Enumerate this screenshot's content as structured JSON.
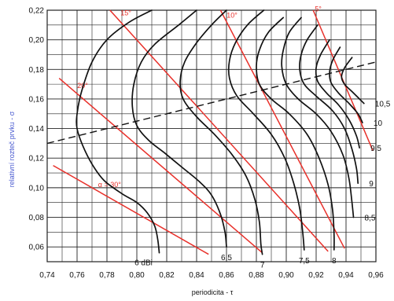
{
  "chart_data": {
    "type": "line",
    "xlabel": "periodicita - τ",
    "ylabel": "relativní rozteč prvku - σ",
    "xlim": [
      0.74,
      0.96
    ],
    "ylim": [
      0.05,
      0.22
    ],
    "x_ticks": [
      "0,74",
      "0,76",
      "0,78",
      "0,80",
      "0,82",
      "0,84",
      "0,86",
      "0,88",
      "0,90",
      "0,92",
      "0,94",
      "0,96"
    ],
    "y_ticks": [
      "0,06",
      "0,08",
      "0,10",
      "0,12",
      "0,14",
      "0,16",
      "0,18",
      "0,20",
      "0,22"
    ],
    "grid": true,
    "gain_contours": [
      {
        "label": "6 dBi",
        "points": [
          [
            0.81,
            0.22
          ],
          [
            0.795,
            0.212
          ],
          [
            0.78,
            0.2
          ],
          [
            0.77,
            0.185
          ],
          [
            0.763,
            0.165
          ],
          [
            0.76,
            0.15
          ],
          [
            0.76,
            0.14
          ],
          [
            0.764,
            0.128
          ],
          [
            0.77,
            0.116
          ],
          [
            0.778,
            0.105
          ],
          [
            0.79,
            0.096
          ],
          [
            0.8,
            0.09
          ],
          [
            0.807,
            0.083
          ],
          [
            0.812,
            0.074
          ],
          [
            0.814,
            0.065
          ],
          [
            0.815,
            0.056
          ]
        ]
      },
      {
        "label": "6,5",
        "points": [
          [
            0.84,
            0.22
          ],
          [
            0.828,
            0.21
          ],
          [
            0.812,
            0.197
          ],
          [
            0.803,
            0.185
          ],
          [
            0.798,
            0.17
          ],
          [
            0.797,
            0.155
          ],
          [
            0.8,
            0.142
          ],
          [
            0.808,
            0.132
          ],
          [
            0.818,
            0.124
          ],
          [
            0.83,
            0.114
          ],
          [
            0.842,
            0.104
          ],
          [
            0.85,
            0.095
          ],
          [
            0.856,
            0.082
          ],
          [
            0.859,
            0.07
          ],
          [
            0.86,
            0.06
          ]
        ]
      },
      {
        "label": "7",
        "points": [
          [
            0.86,
            0.22
          ],
          [
            0.85,
            0.21
          ],
          [
            0.84,
            0.198
          ],
          [
            0.832,
            0.185
          ],
          [
            0.829,
            0.172
          ],
          [
            0.831,
            0.16
          ],
          [
            0.84,
            0.148
          ],
          [
            0.852,
            0.136
          ],
          [
            0.864,
            0.122
          ],
          [
            0.873,
            0.108
          ],
          [
            0.879,
            0.092
          ],
          [
            0.882,
            0.077
          ],
          [
            0.883,
            0.062
          ],
          [
            0.884,
            0.055
          ]
        ]
      },
      {
        "label": "7,5",
        "points": [
          [
            0.885,
            0.22
          ],
          [
            0.874,
            0.21
          ],
          [
            0.866,
            0.198
          ],
          [
            0.862,
            0.186
          ],
          [
            0.862,
            0.174
          ],
          [
            0.867,
            0.162
          ],
          [
            0.878,
            0.15
          ],
          [
            0.89,
            0.136
          ],
          [
            0.899,
            0.12
          ],
          [
            0.905,
            0.103
          ],
          [
            0.909,
            0.086
          ],
          [
            0.911,
            0.07
          ],
          [
            0.912,
            0.058
          ]
        ]
      },
      {
        "label": "8",
        "points": [
          [
            0.898,
            0.215
          ],
          [
            0.888,
            0.205
          ],
          [
            0.882,
            0.193
          ],
          [
            0.88,
            0.182
          ],
          [
            0.882,
            0.17
          ],
          [
            0.89,
            0.16
          ],
          [
            0.902,
            0.15
          ],
          [
            0.914,
            0.136
          ],
          [
            0.922,
            0.12
          ],
          [
            0.928,
            0.102
          ],
          [
            0.931,
            0.085
          ],
          [
            0.932,
            0.068
          ],
          [
            0.932,
            0.058
          ]
        ]
      },
      {
        "label": "8,5",
        "points": [
          [
            0.91,
            0.215
          ],
          [
            0.902,
            0.205
          ],
          [
            0.898,
            0.193
          ],
          [
            0.897,
            0.182
          ],
          [
            0.9,
            0.17
          ],
          [
            0.908,
            0.16
          ],
          [
            0.92,
            0.15
          ],
          [
            0.93,
            0.138
          ],
          [
            0.938,
            0.122
          ],
          [
            0.942,
            0.106
          ],
          [
            0.944,
            0.09
          ],
          [
            0.945,
            0.08
          ]
        ]
      },
      {
        "label": "9",
        "points": [
          [
            0.921,
            0.21
          ],
          [
            0.914,
            0.2
          ],
          [
            0.91,
            0.19
          ],
          [
            0.909,
            0.18
          ],
          [
            0.912,
            0.17
          ],
          [
            0.92,
            0.162
          ],
          [
            0.931,
            0.152
          ],
          [
            0.939,
            0.14
          ],
          [
            0.944,
            0.126
          ],
          [
            0.947,
            0.113
          ],
          [
            0.948,
            0.103
          ]
        ]
      },
      {
        "label": "9,5",
        "points": [
          [
            0.929,
            0.2
          ],
          [
            0.923,
            0.19
          ],
          [
            0.92,
            0.181
          ],
          [
            0.921,
            0.172
          ],
          [
            0.927,
            0.164
          ],
          [
            0.935,
            0.156
          ],
          [
            0.942,
            0.146
          ],
          [
            0.947,
            0.135
          ],
          [
            0.949,
            0.127
          ]
        ]
      },
      {
        "label": "10",
        "points": [
          [
            0.936,
            0.195
          ],
          [
            0.931,
            0.186
          ],
          [
            0.929,
            0.178
          ],
          [
            0.93,
            0.171
          ],
          [
            0.935,
            0.164
          ],
          [
            0.942,
            0.157
          ],
          [
            0.948,
            0.15
          ],
          [
            0.951,
            0.144
          ]
        ]
      },
      {
        "label": "10,5",
        "points": [
          [
            0.944,
            0.188
          ],
          [
            0.939,
            0.181
          ],
          [
            0.937,
            0.175
          ],
          [
            0.939,
            0.17
          ],
          [
            0.944,
            0.165
          ],
          [
            0.949,
            0.16
          ],
          [
            0.952,
            0.157
          ]
        ]
      }
    ],
    "optimum_line": {
      "points": [
        [
          0.74,
          0.13
        ],
        [
          0.96,
          0.185
        ]
      ],
      "style": "dashed"
    },
    "angle_lines": [
      {
        "label": "α = 30°",
        "points": [
          [
            0.744,
            0.115
          ],
          [
            0.848,
            0.055
          ]
        ]
      },
      {
        "label": "20°",
        "points": [
          [
            0.748,
            0.174
          ],
          [
            0.884,
            0.056
          ]
        ]
      },
      {
        "label": "15°",
        "points": [
          [
            0.782,
            0.22
          ],
          [
            0.928,
            0.057
          ]
        ]
      },
      {
        "label": "10°",
        "points": [
          [
            0.856,
            0.22
          ],
          [
            0.939,
            0.059
          ]
        ]
      },
      {
        "label": "5°",
        "points": [
          [
            0.918,
            0.22
          ],
          [
            0.958,
            0.125
          ]
        ]
      }
    ],
    "colors": {
      "gain": "#111111",
      "angle": "#e8302a",
      "ylabel": "#4a5bd0",
      "grid": "#222222"
    }
  }
}
